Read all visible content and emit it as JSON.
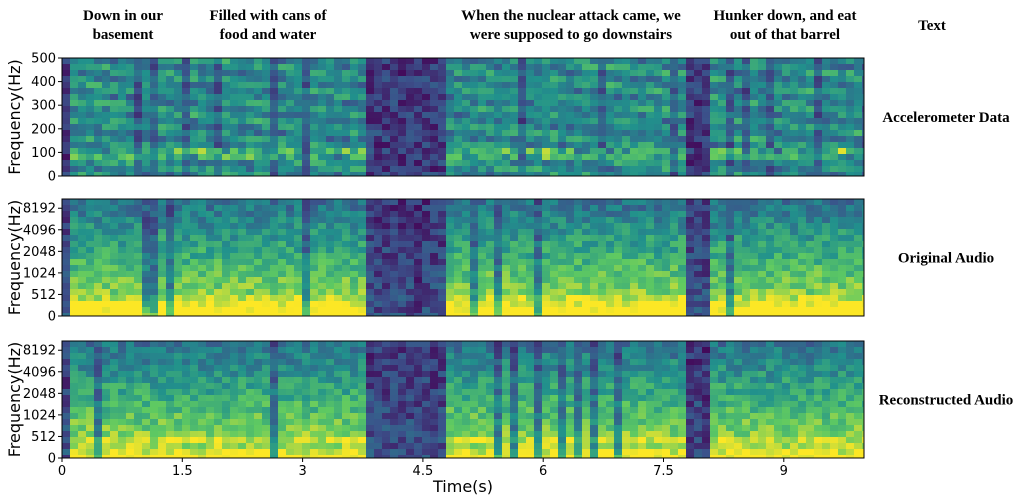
{
  "captions": [
    [
      "Down in our",
      "basement"
    ],
    [
      "Filled with cans of",
      "food and water"
    ],
    [
      "When the nuclear attack came, we",
      "were supposed to go downstairs"
    ],
    [
      "Hunker down, and eat",
      "out of that barrel"
    ]
  ],
  "caption_header": "Text",
  "chart_data": [
    {
      "type": "spectrogram",
      "row_label": "Accelerometer Data",
      "ylabel": "Frequency(Hz)",
      "ylim": [
        0,
        500
      ],
      "yticks": [
        0,
        100,
        200,
        300,
        400,
        500
      ],
      "yscale": "linear"
    },
    {
      "type": "spectrogram",
      "row_label": "Original Audio",
      "ylabel": "Frequency(Hz)",
      "ylim": [
        0,
        11025
      ],
      "yticks": [
        0,
        512,
        1024,
        2048,
        4096,
        8192
      ],
      "yscale": "symlog",
      "linthresh": 512
    },
    {
      "type": "spectrogram",
      "row_label": "Reconstructed Audio",
      "ylabel": "Frequency(Hz)",
      "ylim": [
        0,
        11025
      ],
      "yticks": [
        0,
        512,
        1024,
        2048,
        4096,
        8192
      ],
      "yscale": "symlog",
      "linthresh": 512,
      "xlabel": "Time(s)",
      "xlim": [
        0,
        10
      ],
      "xticks": [
        0,
        1.5,
        3,
        4.5,
        6,
        7.5,
        9
      ]
    }
  ]
}
